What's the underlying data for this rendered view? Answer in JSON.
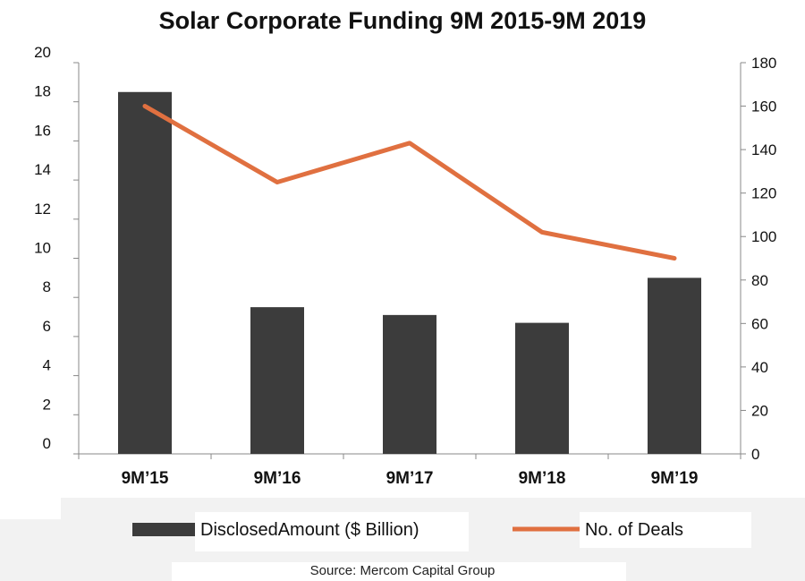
{
  "chart_data": {
    "type": "bar+line",
    "title": "Solar Corporate Funding 9M 2015-9M 2019",
    "categories": [
      "9M’15",
      "9M’16",
      "9M’17",
      "9M’18",
      "9M’19"
    ],
    "series": [
      {
        "name": "DisclosedAmount ($ Billion)",
        "type": "bar",
        "axis": "left",
        "color": "#3c3c3c",
        "values": [
          18.5,
          7.5,
          7.1,
          6.7,
          9.0
        ]
      },
      {
        "name": "No. of Deals",
        "type": "line",
        "axis": "right",
        "color": "#e07040",
        "values": [
          160,
          125,
          143,
          102,
          90
        ]
      }
    ],
    "y_left": {
      "min": 0,
      "max": 20,
      "step": 2,
      "ticks": [
        "0",
        "2",
        "4",
        "6",
        "8",
        "10",
        "12",
        "14",
        "16",
        "18",
        "20"
      ]
    },
    "y_right": {
      "min": 0,
      "max": 180,
      "step": 20,
      "ticks": [
        "0",
        "20",
        "40",
        "60",
        "80",
        "100",
        "120",
        "140",
        "160",
        "180"
      ]
    },
    "legend_position": "bottom",
    "grid": false,
    "source": "Source: Mercom Capital Group"
  }
}
